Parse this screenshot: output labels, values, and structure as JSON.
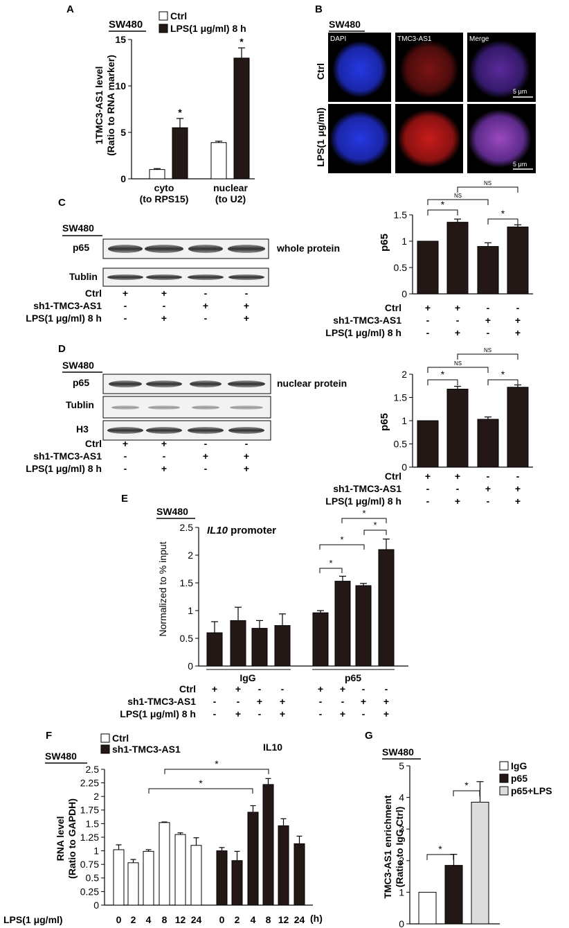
{
  "cell_line": "SW480",
  "panels": {
    "A": {
      "letter": "A",
      "legend": [
        "Ctrl",
        "LPS(1 μg/ml) 8 h"
      ],
      "ylabel_line1": "1TMC3-AS1 level",
      "ylabel_line2": "(Ratio to RNA marker)",
      "group1_line1": "cyto",
      "group1_line2": "(to RPS15)",
      "group2_line1": "nuclear",
      "group2_line2": "(to U2)",
      "sig": "*"
    },
    "B": {
      "letter": "B",
      "columns": [
        "DAPI",
        "TMC3-AS1",
        "Merge"
      ],
      "rows": [
        "Ctrl",
        "LPS(1 μg/ml)"
      ],
      "scale_bar": "5 μm"
    },
    "C": {
      "letter": "C",
      "blot_labels": [
        "p65",
        "Tublin"
      ],
      "blot_note": "whole protein",
      "ylabel": "p65",
      "ns": "NS",
      "sig": "*"
    },
    "D": {
      "letter": "D",
      "blot_labels": [
        "p65",
        "Tublin",
        "H3"
      ],
      "blot_note": "nuclear protein",
      "ylabel": "p65",
      "ns": "NS",
      "sig": "*"
    },
    "E": {
      "letter": "E",
      "title_italic": "IL10",
      "title_rest": " promoter",
      "ylabel": "Normalized to % input",
      "groups": [
        "IgG",
        "p65"
      ],
      "sig": "*"
    },
    "F": {
      "letter": "F",
      "legend": [
        "Ctrl",
        "sh1-TMC3-AS1"
      ],
      "title": "IL10",
      "ylabel_line1": "RNA level",
      "ylabel_line2": "(Ratio to GAPDH)",
      "row_label": "LPS(1 μg/ml)",
      "unit": "(h)",
      "sig": "*"
    },
    "G": {
      "letter": "G",
      "legend": [
        "IgG",
        "p65",
        "p65+LPS"
      ],
      "ylabel_line1": "TMC3-AS1 enrichment",
      "ylabel_line2": "(Ratio to IgG Ctrl)",
      "sig": "*"
    }
  },
  "condition_labels": [
    "Ctrl",
    "sh1-TMC3-AS1",
    "LPS(1 μg/ml) 8 h"
  ],
  "condition_rows": [
    [
      "+",
      "+",
      "-",
      "-"
    ],
    [
      "-",
      "-",
      "+",
      "+"
    ],
    [
      "-",
      "+",
      "-",
      "+"
    ]
  ],
  "colors": {
    "dark_bar": "#231815",
    "white_bar": "#ffffff",
    "light_bar": "#dcdcdc",
    "dapi_blue": "#1e2fd6",
    "tmc3_red": "#d41e1e",
    "merge_purple": "#8a3fa0"
  },
  "chart_data": [
    {
      "panel": "A",
      "type": "bar",
      "categories": [
        "cyto (to RPS15)",
        "nuclear (to U2)"
      ],
      "series": [
        {
          "name": "Ctrl",
          "values": [
            1.0,
            3.9
          ],
          "errors": [
            0.1,
            0.15
          ]
        },
        {
          "name": "LPS(1 μg/ml) 8 h",
          "values": [
            5.5,
            13.0
          ],
          "errors": [
            1.0,
            1.1
          ]
        }
      ],
      "ylim": [
        0,
        15
      ],
      "yticks": [
        0,
        5,
        10,
        15
      ]
    },
    {
      "panel": "C",
      "type": "bar",
      "categories": [
        "1",
        "2",
        "3",
        "4"
      ],
      "values": [
        1.0,
        1.36,
        0.9,
        1.27
      ],
      "errors": [
        0.0,
        0.06,
        0.07,
        0.04
      ],
      "ylim": [
        0,
        1.5
      ],
      "yticks": [
        0,
        0.5,
        1,
        1.5
      ]
    },
    {
      "panel": "D",
      "type": "bar",
      "categories": [
        "1",
        "2",
        "3",
        "4"
      ],
      "values": [
        1.0,
        1.68,
        1.03,
        1.72
      ],
      "errors": [
        0.0,
        0.06,
        0.05,
        0.05
      ],
      "ylim": [
        0,
        2
      ],
      "yticks": [
        0,
        0.5,
        1,
        1.5,
        2
      ]
    },
    {
      "panel": "E",
      "type": "bar",
      "groups": [
        "IgG",
        "p65"
      ],
      "values": [
        [
          0.6,
          0.82,
          0.68,
          0.73
        ],
        [
          0.96,
          1.53,
          1.45,
          2.1
        ]
      ],
      "errors": [
        [
          0.2,
          0.24,
          0.14,
          0.21
        ],
        [
          0.04,
          0.09,
          0.04,
          0.19
        ]
      ],
      "ylim": [
        0,
        2.5
      ],
      "yticks": [
        0,
        0.5,
        1,
        1.5,
        2,
        2.5
      ]
    },
    {
      "panel": "F",
      "type": "bar",
      "categories": [
        "0",
        "2",
        "4",
        "8",
        "12",
        "24"
      ],
      "series": [
        {
          "name": "Ctrl",
          "values": [
            1.02,
            0.78,
            0.99,
            1.52,
            1.3,
            1.1
          ],
          "errors": [
            0.09,
            0.06,
            0.03,
            0.01,
            0.03,
            0.14
          ]
        },
        {
          "name": "sh1-TMC3-AS1",
          "values": [
            1.0,
            0.82,
            1.71,
            2.22,
            1.46,
            1.13
          ],
          "errors": [
            0.06,
            0.17,
            0.12,
            0.11,
            0.13,
            0.14
          ]
        }
      ],
      "ylim": [
        0,
        2.5
      ],
      "yticks": [
        0,
        0.25,
        0.5,
        0.75,
        1,
        1.25,
        1.5,
        1.75,
        2,
        2.25,
        2.5
      ]
    },
    {
      "panel": "G",
      "type": "bar",
      "categories": [
        "IgG",
        "p65",
        "p65+LPS"
      ],
      "values": [
        1.0,
        1.85,
        3.85
      ],
      "errors": [
        0.0,
        0.35,
        0.65
      ],
      "ylim": [
        0,
        5
      ],
      "yticks": [
        0,
        1,
        2,
        3,
        4,
        5
      ]
    }
  ]
}
